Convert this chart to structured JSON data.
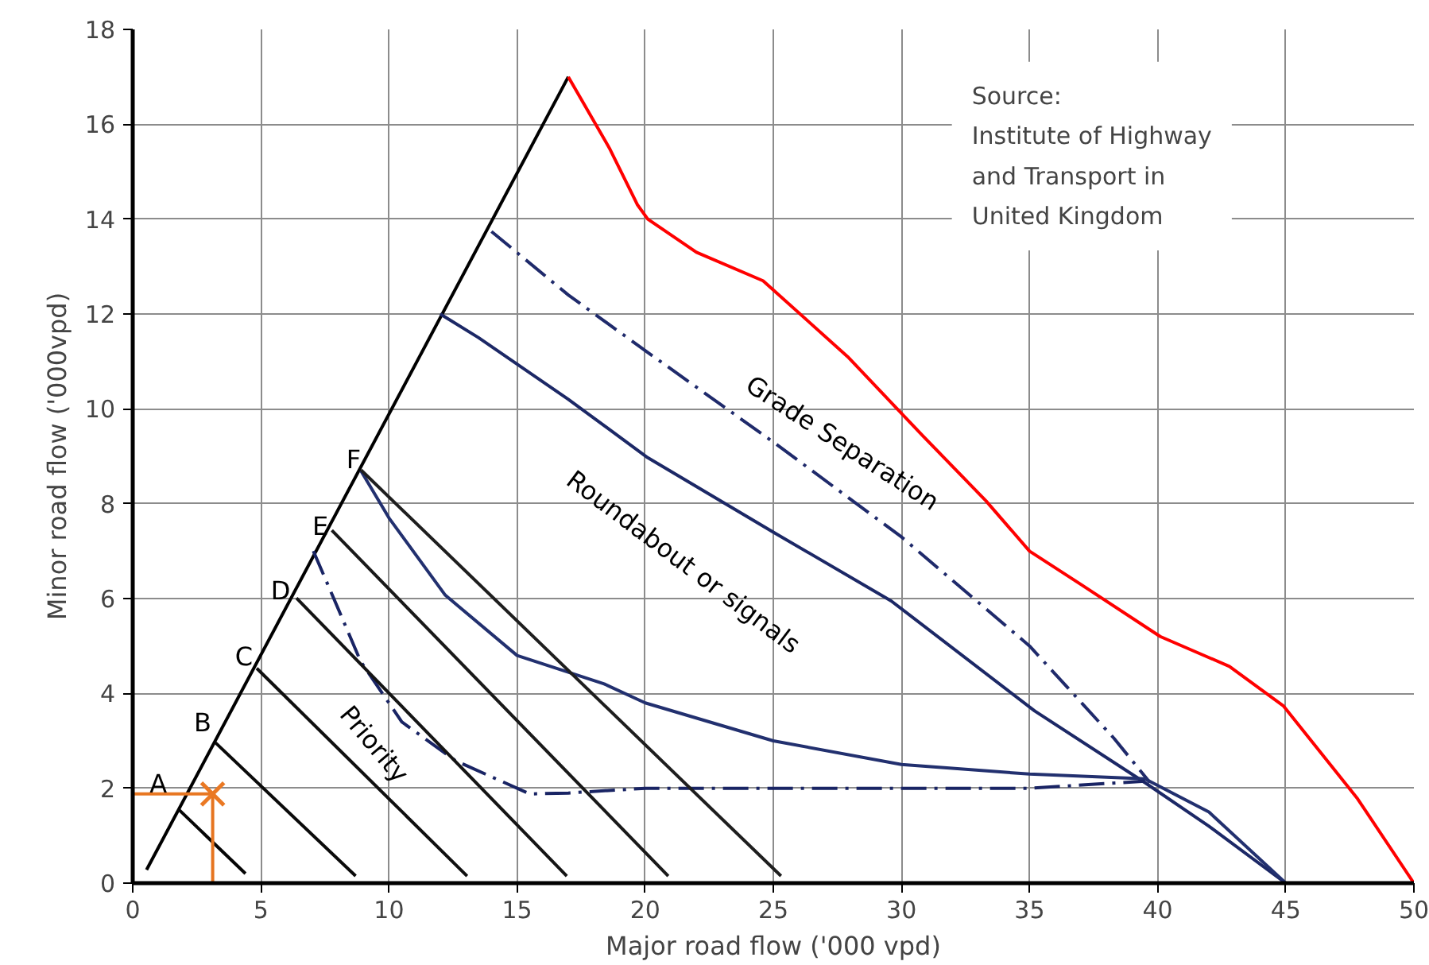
{
  "chart_data": {
    "type": "line",
    "xlabel": "Major road flow ('000 vpd)",
    "ylabel": "Minor road flow ('000vpd)",
    "xlim": [
      0,
      50
    ],
    "xticks": [
      0,
      5,
      10,
      15,
      20,
      25,
      30,
      35,
      40,
      45,
      50
    ],
    "ylim": [
      0,
      18
    ],
    "yticks": [
      0,
      2,
      4,
      6,
      8,
      10,
      12,
      14,
      16,
      18
    ],
    "grid": true,
    "series": [
      {
        "color": "#000000",
        "line_style": "solid",
        "x": [
          0.54,
          17.0
        ],
        "values": [
          0.28,
          17.0
        ]
      },
      {
        "color": "#ff0000",
        "line_style": "solid",
        "x": [
          17.0,
          18.6,
          19.7,
          20.1,
          22.0,
          24.6,
          27.9,
          30.8,
          33.3,
          35.0,
          37.0,
          40.1,
          42.8,
          44.9,
          47.8,
          50.0
        ],
        "values": [
          17.0,
          15.5,
          14.3,
          14.0,
          13.3,
          12.7,
          11.1,
          9.45,
          8.06,
          7.0,
          6.3,
          5.2,
          4.57,
          3.74,
          1.78,
          0.0
        ]
      },
      {
        "color": "#1f2a6b",
        "line_style": "dashed",
        "x": [
          14.0,
          17.0,
          20.1,
          25.0,
          30.0,
          35.0,
          38.3,
          39.7
        ],
        "values": [
          13.74,
          12.4,
          11.19,
          9.3,
          7.3,
          5.0,
          3.05,
          2.12
        ]
      },
      {
        "color": "#1c2866",
        "line_style": "solid",
        "x": [
          12.0,
          13.5,
          17.0,
          20.1,
          25.0,
          29.6,
          35.2,
          39.5,
          42.0,
          45.0
        ],
        "values": [
          12.0,
          11.5,
          10.2,
          8.97,
          7.4,
          5.95,
          3.63,
          2.12,
          1.2,
          0.0
        ]
      },
      {
        "color": "#22306f",
        "line_style": "solid",
        "x": [
          8.9,
          10.0,
          12.2,
          15.0,
          18.4,
          20.0,
          25.0,
          30.0,
          35.0,
          39.5,
          42.0,
          45.0
        ],
        "values": [
          8.7,
          7.7,
          6.07,
          4.8,
          4.2,
          3.8,
          3.0,
          2.5,
          2.3,
          2.2,
          1.5,
          0.0
        ]
      },
      {
        "color": "#192464",
        "line_style": "dashed",
        "x": [
          7.05,
          8.07,
          8.9,
          10.5,
          12.6,
          15.5,
          17.0,
          20.0,
          30.0,
          35.0,
          39.5
        ],
        "values": [
          7.0,
          5.72,
          4.67,
          3.4,
          2.58,
          1.88,
          1.9,
          2.0,
          2.0,
          2.0,
          2.15
        ]
      },
      {
        "color": "#050505",
        "line_style": "solid",
        "x": [
          1.78,
          4.4
        ],
        "values": [
          1.56,
          0.2
        ]
      },
      {
        "color": "#0a0a0a",
        "line_style": "solid",
        "x": [
          3.23,
          8.7
        ],
        "values": [
          2.96,
          0.15
        ]
      },
      {
        "color": "#0f0f0f",
        "line_style": "solid",
        "x": [
          4.84,
          13.05
        ],
        "values": [
          4.53,
          0.15
        ]
      },
      {
        "color": "#141414",
        "line_style": "solid",
        "x": [
          6.39,
          16.94
        ],
        "values": [
          6.01,
          0.15
        ]
      },
      {
        "color": "#191919",
        "line_style": "solid",
        "x": [
          7.77,
          20.9
        ],
        "values": [
          7.44,
          0.15
        ]
      },
      {
        "color": "#1e1e1e",
        "line_style": "solid",
        "x": [
          8.91,
          25.3
        ],
        "values": [
          8.71,
          0.15
        ]
      },
      {
        "color": "#e87722",
        "line_style": "solid",
        "x": [
          0.0,
          3.12
        ],
        "values": [
          1.88,
          1.88
        ]
      },
      {
        "color": "#e67520",
        "line_style": "solid",
        "x": [
          3.12,
          3.12
        ],
        "values": [
          0.0,
          1.88
        ]
      },
      {
        "type": "scatter",
        "color": "#ea7924",
        "marker": "cross",
        "x": [
          3.12
        ],
        "values": [
          1.88
        ]
      }
    ],
    "annotations": [
      "A",
      "B",
      "C",
      "D",
      "E",
      "F",
      "Priority",
      "Roundabout or signals",
      "Grade Separation",
      "Source:\nInstitute of Highway\nand Transport in\nUnited Kingdom"
    ]
  }
}
